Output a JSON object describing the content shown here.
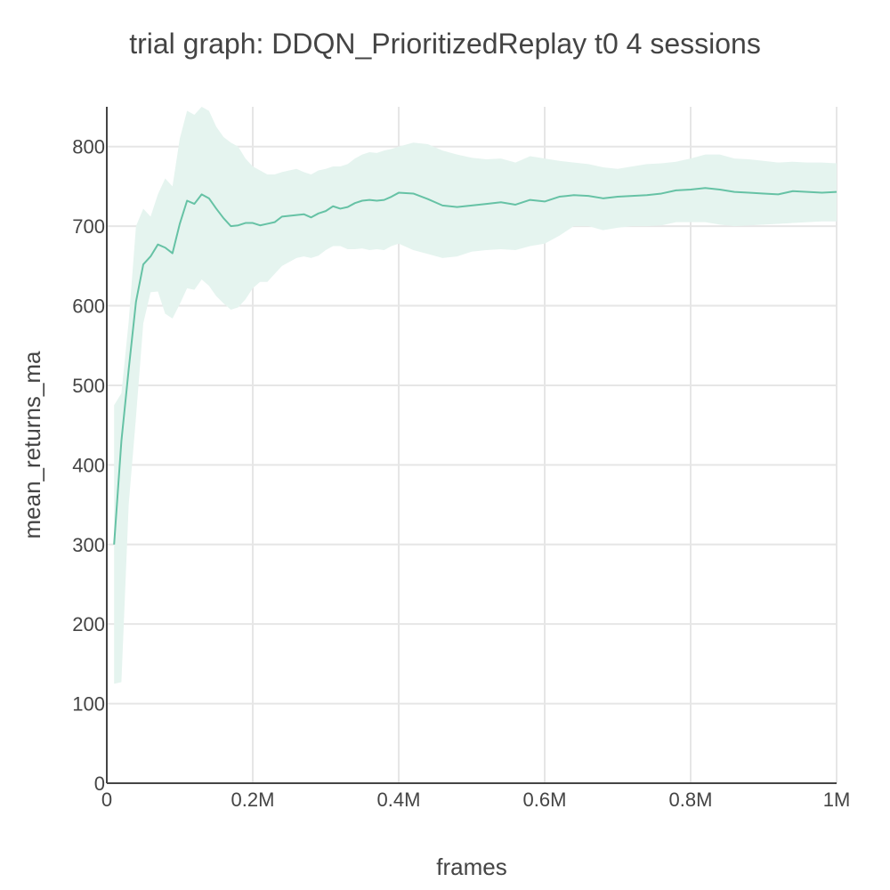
{
  "chart_data": {
    "type": "line",
    "title": "trial graph: DDQN_PrioritizedReplay t0 4 sessions",
    "xlabel": "frames",
    "ylabel": "mean_returns_ma",
    "xlim": [
      0,
      1000000
    ],
    "ylim": [
      0,
      850
    ],
    "x_ticks": [
      0,
      200000,
      400000,
      600000,
      800000,
      1000000
    ],
    "x_tick_labels": [
      "0",
      "0.2M",
      "0.4M",
      "0.6M",
      "0.8M",
      "1M"
    ],
    "y_ticks": [
      0,
      100,
      200,
      300,
      400,
      500,
      600,
      700,
      800
    ],
    "y_tick_labels": [
      "0",
      "100",
      "200",
      "300",
      "400",
      "500",
      "600",
      "700",
      "800"
    ],
    "grid": true,
    "legend": "none",
    "colors": {
      "line": "#66c2a5",
      "band": "#e5f4ef",
      "grid": "#e6e6e6",
      "axis": "#444444",
      "text": "#444444"
    },
    "series": [
      {
        "x": [
          10000,
          20000,
          30000,
          40000,
          50000,
          60000,
          70000,
          80000,
          90000,
          100000,
          110000,
          120000,
          130000,
          140000,
          150000,
          160000,
          170000,
          180000,
          190000,
          200000,
          210000,
          220000,
          230000,
          240000,
          250000,
          260000,
          270000,
          280000,
          290000,
          300000,
          310000,
          320000,
          330000,
          340000,
          350000,
          360000,
          370000,
          380000,
          390000,
          400000,
          420000,
          440000,
          460000,
          480000,
          500000,
          520000,
          540000,
          560000,
          580000,
          600000,
          620000,
          640000,
          660000,
          680000,
          700000,
          720000,
          740000,
          760000,
          780000,
          800000,
          820000,
          840000,
          860000,
          880000,
          900000,
          920000,
          940000,
          960000,
          980000,
          1000000
        ],
        "y": [
          300,
          430,
          520,
          605,
          652,
          662,
          677,
          673,
          666,
          703,
          732,
          728,
          740,
          735,
          722,
          710,
          700,
          701,
          704,
          704,
          701,
          703,
          705,
          712,
          713,
          714,
          715,
          711,
          716,
          719,
          725,
          722,
          724,
          729,
          732,
          733,
          732,
          733,
          737,
          742,
          741,
          734,
          726,
          724,
          726,
          728,
          730,
          727,
          733,
          731,
          737,
          739,
          738,
          735,
          737,
          738,
          739,
          741,
          745,
          746,
          748,
          746,
          743,
          742,
          741,
          740,
          744,
          743,
          742,
          743
        ],
        "upper": [
          475,
          490,
          580,
          700,
          722,
          712,
          740,
          760,
          750,
          810,
          845,
          840,
          850,
          845,
          825,
          812,
          805,
          800,
          785,
          775,
          770,
          765,
          765,
          768,
          770,
          772,
          768,
          765,
          770,
          772,
          775,
          775,
          778,
          785,
          790,
          793,
          792,
          795,
          797,
          800,
          805,
          803,
          795,
          790,
          786,
          784,
          785,
          780,
          788,
          785,
          782,
          780,
          778,
          774,
          772,
          775,
          778,
          779,
          781,
          785,
          790,
          790,
          785,
          784,
          782,
          780,
          781,
          780,
          780,
          779
        ],
        "lower": [
          125,
          127,
          350,
          460,
          578,
          617,
          618,
          590,
          584,
          602,
          622,
          620,
          633,
          625,
          612,
          603,
          595,
          598,
          608,
          622,
          630,
          630,
          640,
          650,
          655,
          660,
          662,
          660,
          663,
          670,
          675,
          675,
          671,
          671,
          672,
          670,
          671,
          670,
          675,
          678,
          670,
          665,
          660,
          662,
          668,
          670,
          671,
          670,
          675,
          678,
          688,
          700,
          700,
          695,
          698,
          700,
          700,
          701,
          705,
          705,
          705,
          702,
          700,
          701,
          702,
          703,
          704,
          705,
          706,
          706
        ]
      }
    ]
  }
}
